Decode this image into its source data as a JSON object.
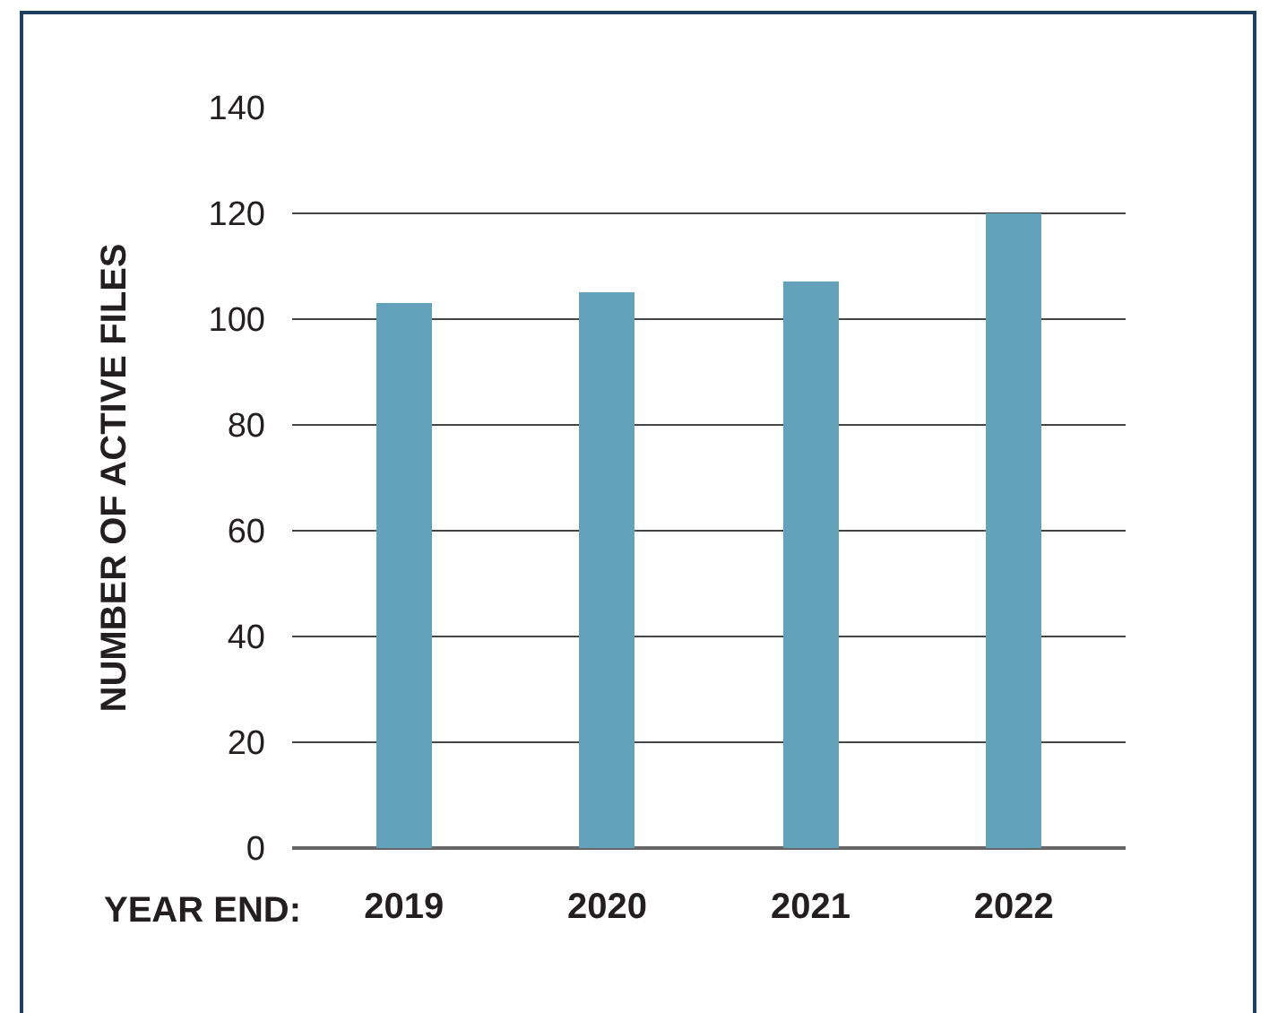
{
  "chart_data": {
    "type": "bar",
    "xlabel": "YEAR END:",
    "ylabel": "NUMBER OF ACTIVE FILES",
    "categories": [
      "2019",
      "2020",
      "2021",
      "2022"
    ],
    "values": [
      103,
      105,
      107,
      120
    ],
    "color": "#62a2bb",
    "ylim": [
      0,
      140
    ],
    "yticks": [
      0,
      20,
      40,
      60,
      80,
      100,
      120,
      140
    ],
    "grid": "y",
    "legend": false
  }
}
